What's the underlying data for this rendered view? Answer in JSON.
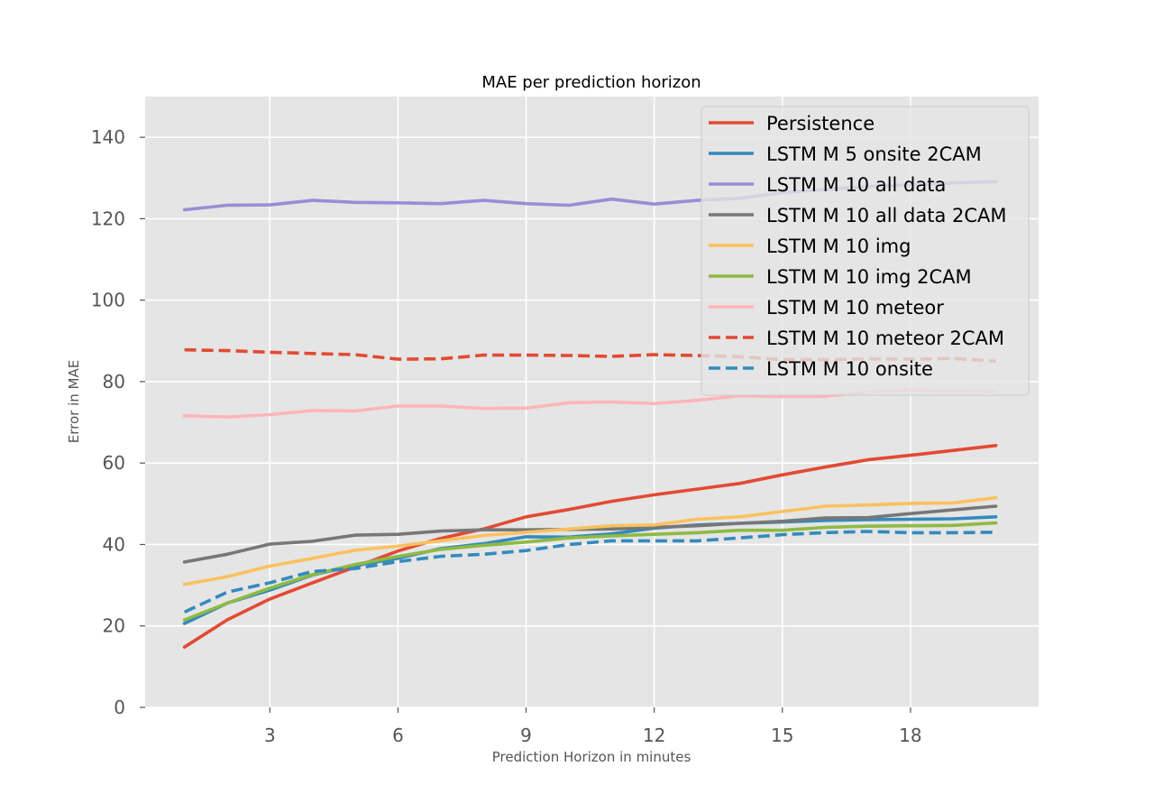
{
  "chart_data": {
    "type": "line",
    "title": "MAE per prediction horizon",
    "xlabel": "Prediction Horizon in minutes",
    "ylabel": "Error in MAE",
    "x": [
      1,
      2,
      3,
      4,
      5,
      6,
      7,
      8,
      9,
      10,
      11,
      12,
      13,
      14,
      15,
      16,
      17,
      18,
      19,
      20
    ],
    "xlim": [
      0.08,
      21.0
    ],
    "ylim": [
      0,
      150
    ],
    "xticks": [
      3,
      6,
      9,
      12,
      15,
      18
    ],
    "yticks": [
      0,
      20,
      40,
      60,
      80,
      100,
      120,
      140
    ],
    "grid": true,
    "legend_position": "top-right",
    "background_color": "#e5e5e5",
    "series": [
      {
        "name": "Persistence",
        "color": "#e24a33",
        "dashed": false,
        "values": [
          14.8,
          21.5,
          26.6,
          30.6,
          34.5,
          38.4,
          41.5,
          43.8,
          46.8,
          48.6,
          50.6,
          52.2,
          53.6,
          55.0,
          57.1,
          59.0,
          60.8,
          61.9,
          63.1,
          64.3
        ]
      },
      {
        "name": "LSTM M 5 onsite 2CAM",
        "color": "#348abd",
        "dashed": false,
        "values": [
          20.6,
          25.6,
          28.8,
          32.5,
          34.9,
          36.6,
          39.0,
          40.2,
          41.9,
          41.8,
          42.6,
          44.0,
          44.8,
          45.2,
          45.5,
          45.9,
          46.1,
          46.2,
          46.3,
          46.8
        ]
      },
      {
        "name": "LSTM M 10 all data",
        "color": "#988ed5",
        "dashed": false,
        "values": [
          122.2,
          123.3,
          123.4,
          124.5,
          124.0,
          123.9,
          123.7,
          124.5,
          123.7,
          123.3,
          124.8,
          123.6,
          124.5,
          125.0,
          126.4,
          127.2,
          127.9,
          128.3,
          128.8,
          129.1
        ]
      },
      {
        "name": "LSTM M 10 all data 2CAM",
        "color": "#777777",
        "dashed": false,
        "values": [
          35.7,
          37.6,
          40.1,
          40.8,
          42.3,
          42.5,
          43.3,
          43.6,
          43.6,
          43.7,
          43.8,
          44.2,
          44.6,
          45.2,
          45.7,
          46.5,
          46.6,
          47.6,
          48.5,
          49.4
        ]
      },
      {
        "name": "LSTM M 10 img",
        "color": "#fbc15e",
        "dashed": false,
        "values": [
          30.2,
          32.1,
          34.7,
          36.6,
          38.6,
          39.6,
          40.9,
          42.2,
          43.0,
          43.8,
          44.6,
          44.8,
          46.2,
          46.8,
          48.1,
          49.4,
          49.7,
          50.1,
          50.2,
          51.5
        ]
      },
      {
        "name": "LSTM M 10 img 2CAM",
        "color": "#8eba42",
        "dashed": false,
        "values": [
          21.5,
          25.6,
          29.3,
          32.6,
          35.1,
          37.1,
          38.8,
          39.8,
          40.6,
          41.6,
          42.1,
          42.5,
          42.9,
          43.5,
          43.5,
          44.2,
          44.5,
          44.6,
          44.7,
          45.3
        ]
      },
      {
        "name": "LSTM M 10 meteor",
        "color": "#ffb5b8",
        "dashed": false,
        "values": [
          71.6,
          71.3,
          71.9,
          72.9,
          72.8,
          74.0,
          74.0,
          73.4,
          73.5,
          74.8,
          75.0,
          74.6,
          75.4,
          76.5,
          76.3,
          76.4,
          77.4,
          77.9,
          77.6,
          77.5
        ]
      },
      {
        "name": "LSTM M 10 meteor 2CAM",
        "color": "#e24a33",
        "dashed": true,
        "values": [
          87.8,
          87.6,
          87.2,
          86.9,
          86.6,
          85.5,
          85.6,
          86.5,
          86.5,
          86.4,
          86.2,
          86.6,
          86.4,
          86.1,
          85.4,
          85.4,
          85.6,
          85.5,
          85.7,
          85.0
        ]
      },
      {
        "name": "LSTM M 10 onsite",
        "color": "#348abd",
        "dashed": true,
        "values": [
          23.4,
          28.3,
          30.6,
          33.4,
          34.1,
          35.8,
          37.1,
          37.6,
          38.5,
          40.0,
          40.9,
          40.9,
          40.9,
          41.6,
          42.4,
          42.9,
          43.2,
          42.9,
          42.9,
          43.0
        ]
      }
    ]
  }
}
